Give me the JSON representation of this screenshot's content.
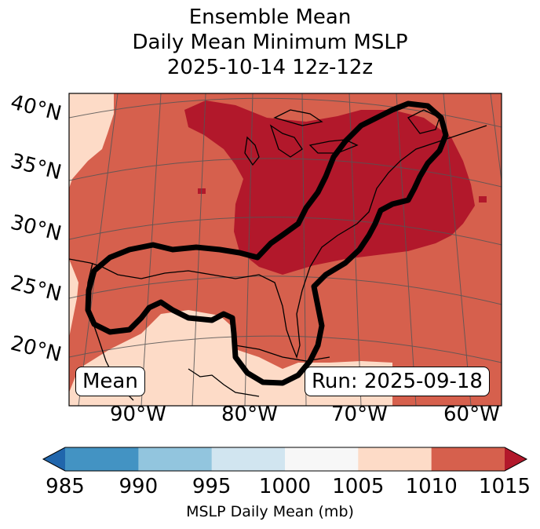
{
  "title": {
    "line1": "Ensemble Mean",
    "line2": "Daily Mean Minimum MSLP",
    "line3": "2025-10-14 12z-12z"
  },
  "map": {
    "lat_labels": [
      "40°N",
      "35°N",
      "30°N",
      "25°N",
      "20°N"
    ],
    "lon_labels": [
      "90°W",
      "80°W",
      "70°W",
      "60°W"
    ],
    "mean_box": "Mean",
    "run_box": "Run: 2025-09-18",
    "field_colors": {
      "1005-1010": "#fddbc7",
      "1010-1015": "#d6604d",
      "above-1015": "#b2182b"
    },
    "contour_color": "#000000",
    "coast_color": "#000000",
    "grid_color": "#555555"
  },
  "colorbar": {
    "label": "MSLP Daily Mean (mb)",
    "ticks": [
      "985",
      "990",
      "995",
      "1000",
      "1005",
      "1010",
      "1015"
    ],
    "bins": [
      {
        "range": "985-990",
        "color": "#4393c3"
      },
      {
        "range": "990-995",
        "color": "#92c5de"
      },
      {
        "range": "995-1000",
        "color": "#d1e5f0"
      },
      {
        "range": "1000-1005",
        "color": "#f7f7f7"
      },
      {
        "range": "1005-1010",
        "color": "#fddbc7"
      },
      {
        "range": "1010-1015",
        "color": "#d6604d"
      }
    ],
    "under_color": "#2166ac",
    "over_color": "#b2182b"
  }
}
